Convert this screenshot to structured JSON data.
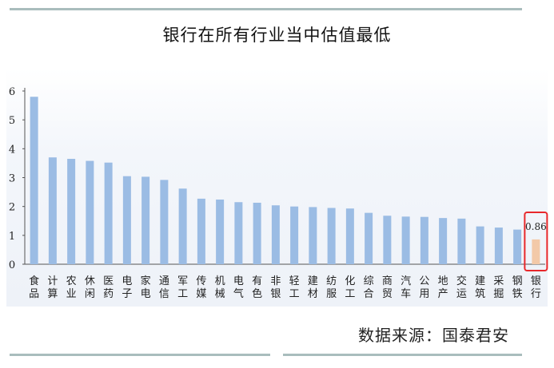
{
  "chart_data": {
    "type": "bar",
    "title": "银行在所有行业当中估值最低",
    "categories": [
      "食品",
      "计算",
      "农业",
      "休闲",
      "医药",
      "电子",
      "家电",
      "通信",
      "军工",
      "传媒",
      "机械",
      "电气",
      "有色",
      "非银",
      "轻工",
      "建材",
      "纺服",
      "化工",
      "综合",
      "商贸",
      "汽车",
      "公用",
      "地产",
      "交运",
      "建筑",
      "采掘",
      "钢铁",
      "银行"
    ],
    "values": [
      5.8,
      3.7,
      3.65,
      3.58,
      3.52,
      3.05,
      3.03,
      2.92,
      2.62,
      2.27,
      2.24,
      2.15,
      2.13,
      2.04,
      2.0,
      1.98,
      1.95,
      1.93,
      1.78,
      1.68,
      1.65,
      1.64,
      1.6,
      1.58,
      1.31,
      1.27,
      1.2,
      0.86
    ],
    "ylim": [
      0,
      6
    ],
    "yticks": [
      "0",
      "1",
      "2",
      "3",
      "4",
      "5",
      "6"
    ],
    "xlabel": "",
    "ylabel": "",
    "bar_color": "#9bbce4",
    "highlight_color": "#f3c9a8",
    "highlight_index": 27,
    "highlight_label": "0.86",
    "highlight_box_color": "#e8282b",
    "grid": false,
    "legend": "none"
  },
  "source": "数据来源：国泰君安"
}
